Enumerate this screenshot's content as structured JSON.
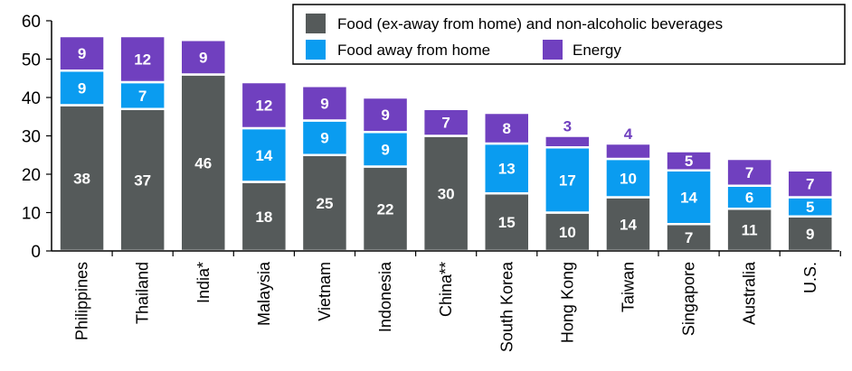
{
  "chart_data": {
    "type": "bar",
    "stacked": true,
    "categories": [
      "Philippines",
      "Thailand",
      "India*",
      "Malaysia",
      "Vietnam",
      "Indonesia",
      "China**",
      "South Korea",
      "Hong Kong",
      "Taiwan",
      "Singapore",
      "Australia",
      "U.S."
    ],
    "series": [
      {
        "name": "Food (ex-away from home) and non-alcoholic beverages",
        "color": "#555a5a",
        "values": [
          38,
          37,
          46,
          18,
          25,
          22,
          30,
          15,
          10,
          14,
          7,
          11,
          9
        ]
      },
      {
        "name": "Food away from home",
        "color": "#0a9cf0",
        "values": [
          9,
          7,
          0,
          14,
          9,
          9,
          0,
          13,
          17,
          10,
          14,
          6,
          5
        ]
      },
      {
        "name": "Energy",
        "color": "#7040bf",
        "values": [
          9,
          12,
          9,
          12,
          9,
          9,
          7,
          8,
          3,
          4,
          5,
          7,
          7
        ]
      }
    ],
    "labels": [
      [
        "38",
        "37",
        "46",
        "18",
        "25",
        "22",
        "30",
        "15",
        "10",
        "14",
        "7",
        "11",
        "9"
      ],
      [
        "9",
        "7",
        "",
        "14",
        "9",
        "9",
        "",
        "13",
        "17",
        "10",
        "14",
        "6",
        "5"
      ],
      [
        "9",
        "12",
        "9",
        "12",
        "9",
        "9",
        "7",
        "8",
        "3",
        "4",
        "5",
        "7",
        "7"
      ]
    ],
    "yticks": [
      "0",
      "10",
      "20",
      "30",
      "40",
      "50",
      "60"
    ],
    "ylim": [
      0,
      60
    ],
    "legend_position": "top-right",
    "grid": false
  }
}
